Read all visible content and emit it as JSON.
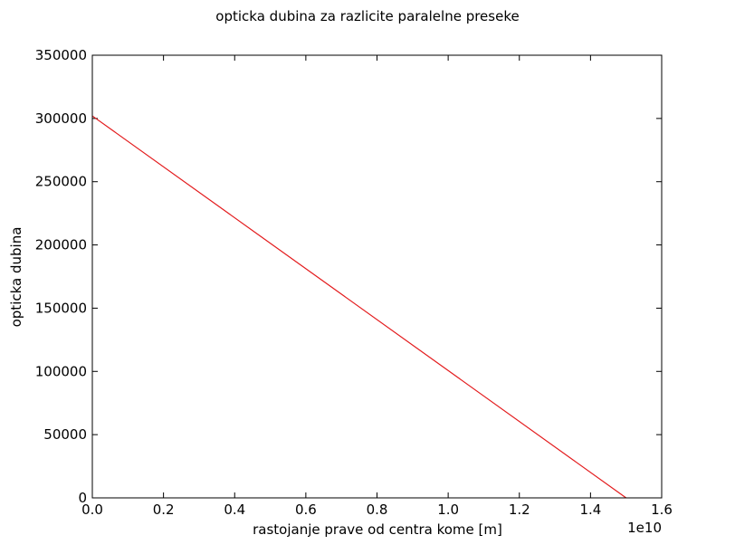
{
  "chart_data": {
    "type": "line",
    "title": "opticka dubina za razlicite paralelne preseke",
    "xlabel": "rastojanje prave od centra kome [m]",
    "ylabel": "opticka dubina",
    "x_offset_label": "1e10",
    "xlim": [
      0,
      16000000000.0
    ],
    "ylim": [
      0,
      350000
    ],
    "x_ticks": [
      0,
      2000000000.0,
      4000000000.0,
      6000000000.0,
      8000000000.0,
      10000000000.0,
      12000000000.0,
      14000000000.0,
      16000000000.0
    ],
    "x_tick_labels": [
      "0.0",
      "0.2",
      "0.4",
      "0.6",
      "0.8",
      "1.0",
      "1.2",
      "1.4",
      "1.6"
    ],
    "y_ticks": [
      0,
      50000,
      100000,
      150000,
      200000,
      250000,
      300000,
      350000
    ],
    "y_tick_labels": [
      "0",
      "50000",
      "100000",
      "150000",
      "200000",
      "250000",
      "300000",
      "350000"
    ],
    "grid": false,
    "series": [
      {
        "color": "#e31a1c",
        "x": [
          0,
          15000000000.0
        ],
        "y": [
          302000,
          0
        ]
      }
    ]
  }
}
